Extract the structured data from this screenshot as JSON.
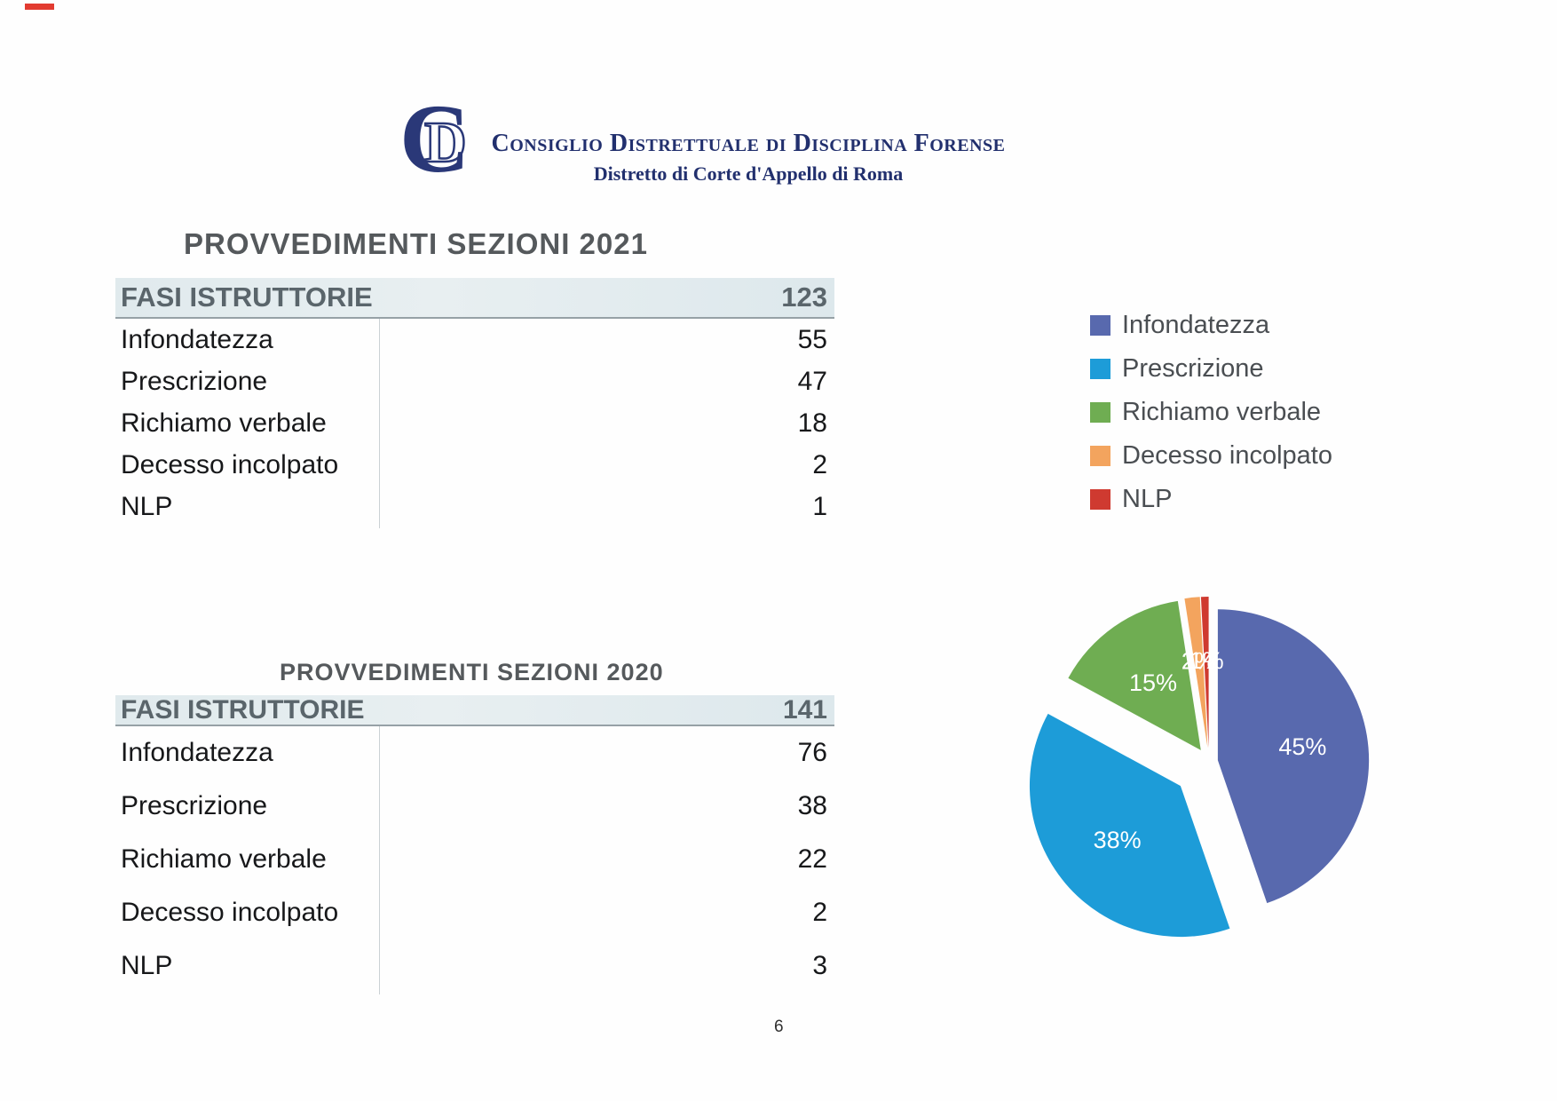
{
  "header": {
    "logo_letter_c": "C",
    "logo_letter_d": "D",
    "org_name": "Consiglio Distrettuale di Disciplina Forense",
    "org_subtitle": "Distretto di Corte d'Appello di Roma"
  },
  "tables": [
    {
      "title": "PROVVEDIMENTI SEZIONI 2021",
      "header": {
        "label": "FASI ISTRUTTORIE",
        "total": "123"
      },
      "rows": [
        {
          "label": "Infondatezza",
          "value": "55"
        },
        {
          "label": "Prescrizione",
          "value": "47"
        },
        {
          "label": "Richiamo verbale",
          "value": "18"
        },
        {
          "label": "Decesso incolpato",
          "value": "2"
        },
        {
          "label": "NLP",
          "value": "1"
        }
      ]
    },
    {
      "title": "PROVVEDIMENTI SEZIONI 2020",
      "header": {
        "label": "FASI ISTRUTTORIE",
        "total": "141"
      },
      "rows": [
        {
          "label": "Infondatezza",
          "value": "76"
        },
        {
          "label": "Prescrizione",
          "value": "38"
        },
        {
          "label": "Richiamo verbale",
          "value": "22"
        },
        {
          "label": "Decesso incolpato",
          "value": "2"
        },
        {
          "label": "NLP",
          "value": "3"
        }
      ]
    }
  ],
  "chart_data": {
    "type": "pie",
    "title": "",
    "categories": [
      "Infondatezza",
      "Prescrizione",
      "Richiamo verbale",
      "Decesso incolpato",
      "NLP"
    ],
    "values": [
      55,
      47,
      18,
      2,
      1
    ],
    "percent_labels": [
      "45%",
      "38%",
      "15%",
      "2%",
      "1%"
    ],
    "colors": [
      "#5869ae",
      "#1d9cd8",
      "#6fad52",
      "#f3a45e",
      "#cf3a30"
    ],
    "legend_position": "right-top",
    "exploded": true,
    "label_color": "#ffffff"
  },
  "page_number": "6"
}
